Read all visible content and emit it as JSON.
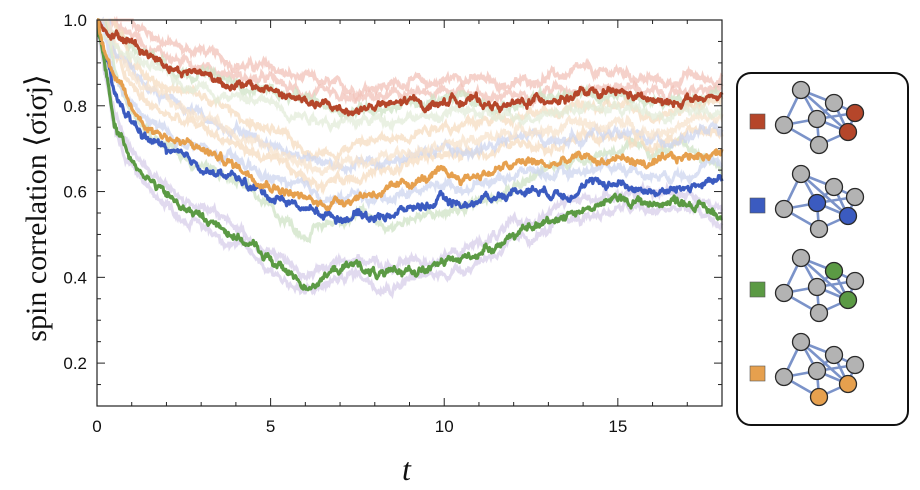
{
  "chart_data": {
    "type": "line",
    "xlabel": "t",
    "ylabel": "spin correlation ⟨σiσj⟩",
    "xlim": [
      0,
      18
    ],
    "ylim": [
      0.1,
      1.0
    ],
    "x_ticks": [
      0,
      5,
      10,
      15
    ],
    "y_ticks": [
      0.2,
      0.4,
      0.6,
      0.8,
      1.0
    ],
    "x_tick_labels": [
      "0",
      "5",
      "10",
      "15"
    ],
    "y_tick_labels": [
      "0.2",
      "0.4",
      "0.6",
      "0.8",
      "1.0"
    ],
    "grid": false,
    "legend_position": "right",
    "x": [
      0,
      0.5,
      1,
      1.5,
      2,
      2.5,
      3,
      3.5,
      4,
      4.5,
      5,
      5.5,
      6,
      6.5,
      7,
      7.5,
      8,
      8.5,
      9,
      9.5,
      10,
      10.5,
      11,
      11.5,
      12,
      12.5,
      13,
      13.5,
      14,
      14.5,
      15,
      15.5,
      16,
      16.5,
      17,
      17.5,
      18
    ],
    "series": [
      {
        "color": "#b5462a",
        "values": [
          1.0,
          0.97,
          0.95,
          0.92,
          0.9,
          0.88,
          0.88,
          0.86,
          0.85,
          0.84,
          0.84,
          0.82,
          0.81,
          0.8,
          0.79,
          0.79,
          0.8,
          0.8,
          0.81,
          0.8,
          0.81,
          0.82,
          0.81,
          0.8,
          0.8,
          0.81,
          0.82,
          0.82,
          0.83,
          0.82,
          0.83,
          0.82,
          0.81,
          0.8,
          0.82,
          0.81,
          0.82
        ]
      },
      {
        "color": "#3b5bc0",
        "values": [
          1.0,
          0.82,
          0.76,
          0.72,
          0.7,
          0.67,
          0.66,
          0.64,
          0.63,
          0.61,
          0.59,
          0.58,
          0.56,
          0.55,
          0.54,
          0.55,
          0.54,
          0.55,
          0.56,
          0.57,
          0.58,
          0.57,
          0.58,
          0.59,
          0.6,
          0.61,
          0.6,
          0.6,
          0.61,
          0.62,
          0.62,
          0.61,
          0.6,
          0.6,
          0.61,
          0.62,
          0.62
        ]
      },
      {
        "color": "#5b9a44",
        "values": [
          1.0,
          0.76,
          0.68,
          0.63,
          0.59,
          0.56,
          0.54,
          0.52,
          0.5,
          0.47,
          0.44,
          0.41,
          0.38,
          0.4,
          0.42,
          0.43,
          0.41,
          0.4,
          0.42,
          0.42,
          0.43,
          0.44,
          0.46,
          0.48,
          0.5,
          0.51,
          0.53,
          0.55,
          0.56,
          0.57,
          0.58,
          0.58,
          0.57,
          0.58,
          0.58,
          0.56,
          0.54
        ]
      },
      {
        "color": "#e6a04e",
        "values": [
          1.0,
          0.87,
          0.79,
          0.75,
          0.73,
          0.71,
          0.7,
          0.68,
          0.66,
          0.64,
          0.62,
          0.6,
          0.58,
          0.57,
          0.58,
          0.59,
          0.6,
          0.6,
          0.62,
          0.63,
          0.64,
          0.63,
          0.64,
          0.65,
          0.66,
          0.67,
          0.66,
          0.67,
          0.68,
          0.67,
          0.68,
          0.67,
          0.66,
          0.67,
          0.68,
          0.69,
          0.69
        ]
      }
    ]
  },
  "legend": {
    "items": [
      {
        "color": "#b5462a",
        "highlight": [
          4,
          5
        ]
      },
      {
        "color": "#3b5bc0",
        "highlight": [
          3,
          5
        ]
      },
      {
        "color": "#5b9a44",
        "highlight": [
          1,
          5
        ]
      },
      {
        "color": "#e6a04e",
        "highlight": [
          5,
          6
        ]
      }
    ]
  }
}
